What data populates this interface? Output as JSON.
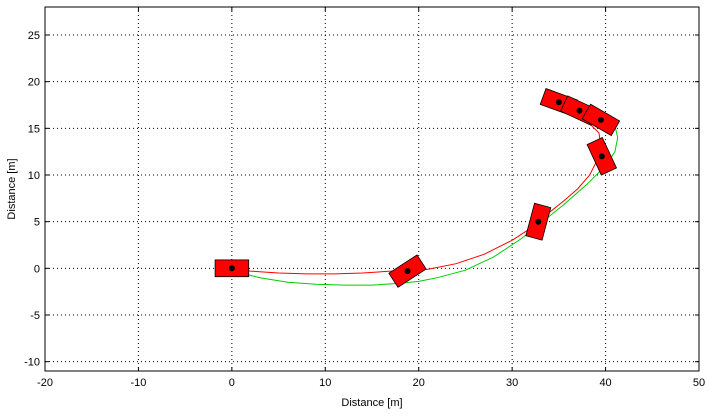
{
  "chart_data": {
    "type": "scatter",
    "title": "",
    "xlabel": "Distance [m]",
    "ylabel": "Distance [m]",
    "xlim": [
      -20,
      50
    ],
    "ylim": [
      -11,
      28
    ],
    "xticks": [
      -20,
      -10,
      0,
      10,
      20,
      30,
      40,
      50
    ],
    "yticks": [
      -10,
      -5,
      0,
      5,
      10,
      15,
      20,
      25
    ],
    "grid": true,
    "series": [
      {
        "color": "#ff0000",
        "x": [
          0,
          2,
          5,
          8,
          11,
          14,
          17,
          18.8,
          21,
          24,
          27,
          30,
          32,
          33,
          34,
          35.5,
          37,
          38.3,
          38.8,
          39.3,
          39.5,
          39.3,
          38,
          36,
          35
        ],
        "y": [
          0,
          -0.3,
          -0.5,
          -0.6,
          -0.6,
          -0.5,
          -0.3,
          -0.3,
          -0.1,
          0.5,
          1.5,
          3.0,
          4.3,
          5.0,
          6.0,
          7.2,
          8.5,
          10.0,
          11.0,
          12.0,
          13.0,
          14.5,
          15.8,
          17.0,
          17.8
        ]
      },
      {
        "color": "#00cc00",
        "x": [
          0,
          1,
          3,
          6,
          9,
          12,
          15,
          18,
          20,
          22,
          25,
          28,
          31,
          33,
          35.5,
          38,
          40,
          41,
          41.3,
          41,
          40.5,
          39.5
        ],
        "y": [
          0,
          -0.5,
          -1.0,
          -1.5,
          -1.7,
          -1.8,
          -1.8,
          -1.6,
          -1.4,
          -1.0,
          -0.2,
          1.2,
          3.2,
          4.8,
          6.8,
          9.0,
          11.0,
          12.5,
          14.0,
          15.3,
          15.8,
          16.0
        ]
      }
    ],
    "vehicles": [
      {
        "x": 0,
        "y": 0,
        "heading_deg": 0
      },
      {
        "x": 18.8,
        "y": -0.3,
        "heading_deg": 33
      },
      {
        "x": 32.8,
        "y": 5.0,
        "heading_deg": 75
      },
      {
        "x": 39.6,
        "y": 12.0,
        "heading_deg": 115
      },
      {
        "x": 35.0,
        "y": 17.8,
        "heading_deg": -20
      },
      {
        "x": 37.2,
        "y": 16.9,
        "heading_deg": -25
      },
      {
        "x": 39.5,
        "y": 15.9,
        "heading_deg": -30
      }
    ],
    "vehicle_color": "#ff0000",
    "vehicle_dot_color": "#000000"
  }
}
